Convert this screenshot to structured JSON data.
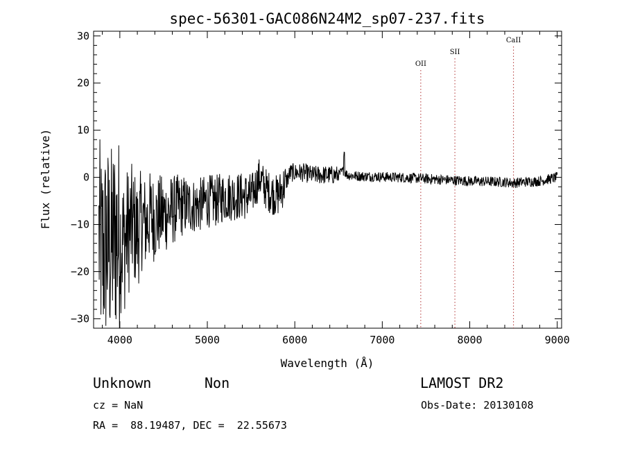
{
  "chart_data": {
    "type": "line",
    "title": "spec-56301-GAC086N24M2_sp07-237.fits",
    "xlabel": "Wavelength (Å)",
    "ylabel": "Flux (relative)",
    "xlim": [
      3700,
      9050
    ],
    "ylim": [
      -32,
      31
    ],
    "xticks": [
      4000,
      5000,
      6000,
      7000,
      8000,
      9000
    ],
    "yticks": [
      -30,
      -20,
      -10,
      0,
      10,
      20,
      30
    ],
    "line_color": "#000000",
    "marker_color": "#b03030",
    "grid": false,
    "series": [
      {
        "x": [
          3750,
          3800,
          3850,
          3900,
          3950,
          4000,
          4050,
          4100,
          4150,
          4200,
          4250,
          4300,
          4350,
          4400,
          4450,
          4500,
          4600,
          4700,
          4800,
          4900,
          5000,
          5100,
          5200,
          5300,
          5400,
          5500,
          5550,
          5600,
          5650,
          5700,
          5800,
          5900,
          5950,
          6000,
          6100,
          6200,
          6300,
          6400,
          6500,
          6560,
          6600,
          6700,
          6800,
          6900,
          7000,
          7200,
          7400,
          7600,
          7800,
          8000,
          8200,
          8400,
          8500,
          8600,
          8800,
          9000
        ],
        "y": [
          -12,
          -16,
          -14,
          -15,
          -12,
          -13,
          -14,
          -11,
          -10,
          -12,
          -9,
          -10,
          -8,
          -9,
          -8,
          -8,
          -7,
          -6,
          -6,
          -6,
          -5,
          -5,
          -4,
          -4,
          -4,
          -4,
          -2,
          0,
          -2,
          -3,
          -4,
          -1,
          1,
          1,
          1,
          0.5,
          0.5,
          0.5,
          0.5,
          1.5,
          0.5,
          0.3,
          0.2,
          0.2,
          0.1,
          0,
          -0.2,
          -0.4,
          -0.6,
          -0.8,
          -0.9,
          -1,
          -1.2,
          -1,
          -0.8,
          0
        ]
      }
    ],
    "annotations": [
      {
        "label": "OII",
        "x": 7440
      },
      {
        "label": "SII",
        "x": 7830
      },
      {
        "label": "CaII",
        "x": 8500
      }
    ]
  },
  "info": {
    "object_class": "Unknown",
    "subclass": "Non",
    "survey": "LAMOST DR2",
    "cz": "cz = NaN",
    "obs_date": "Obs-Date: 20130108",
    "coords": "RA =  88.19487, DEC =  22.55673"
  }
}
